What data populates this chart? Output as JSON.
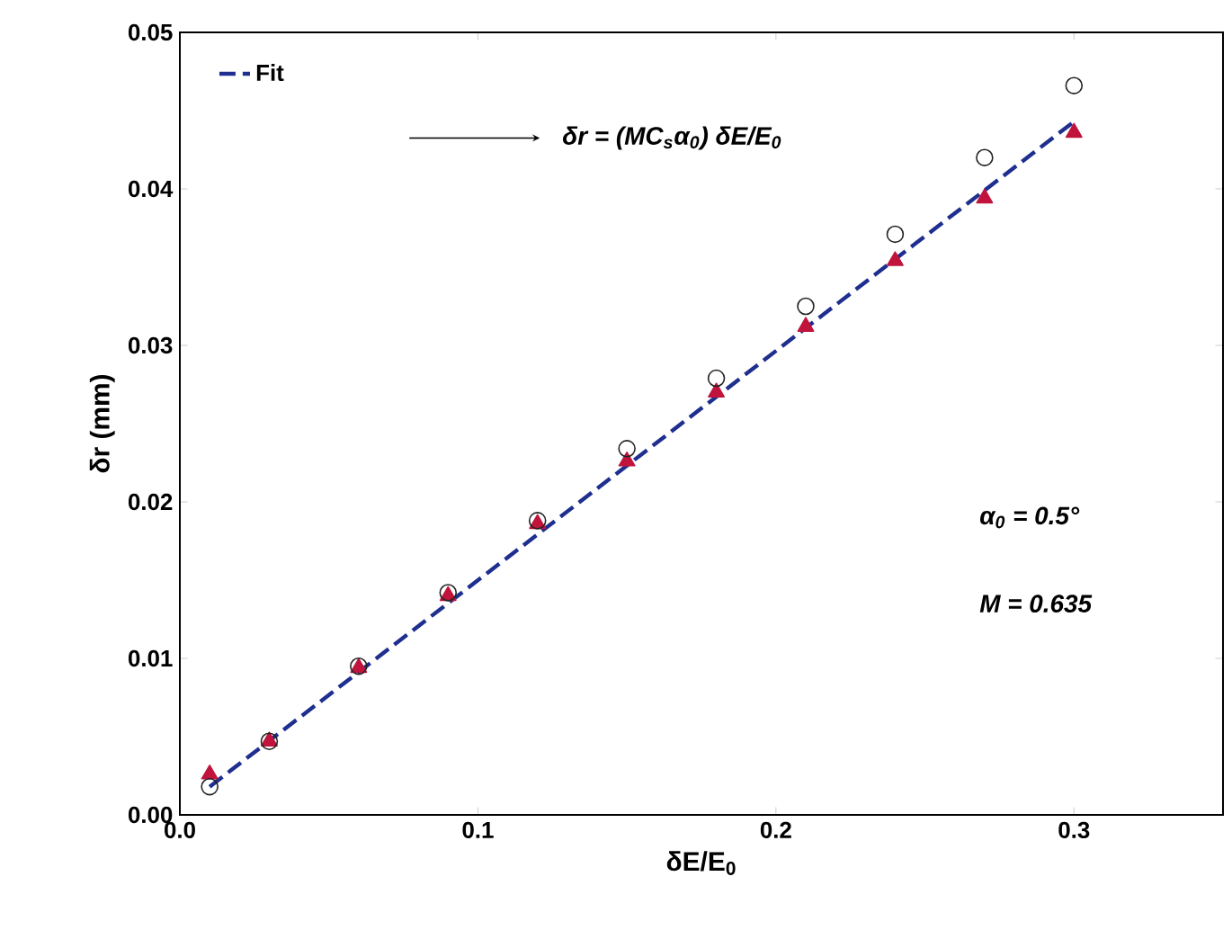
{
  "chart_data": {
    "type": "scatter",
    "xlabel": "δE/E$_{0}$",
    "ylabel": "δr (mm)",
    "xlim": [
      0,
      0.35
    ],
    "ylim": [
      0,
      0.05
    ],
    "xticks": [
      {
        "value": 0,
        "label": "0.0"
      },
      {
        "value": 0.1,
        "label": "0.1"
      },
      {
        "value": 0.2,
        "label": "0.2"
      },
      {
        "value": 0.3,
        "label": "0.3"
      }
    ],
    "yticks": [
      {
        "value": 0,
        "label": "0.00"
      },
      {
        "value": 0.01,
        "label": "0.01"
      },
      {
        "value": 0.02,
        "label": "0.02"
      },
      {
        "value": 0.03,
        "label": "0.03"
      },
      {
        "value": 0.04,
        "label": "0.04"
      },
      {
        "value": 0.05,
        "label": "0.05"
      }
    ],
    "legend": "top left",
    "grid": false,
    "series": [
      {
        "marker": "triangle",
        "color": "#c0143c",
        "x": [
          0.01,
          0.03,
          0.06,
          0.09,
          0.12,
          0.15,
          0.18,
          0.21,
          0.24,
          0.27,
          0.3
        ],
        "values": [
          0.0026,
          0.0047,
          0.0094,
          0.014,
          0.0186,
          0.0226,
          0.027,
          0.0312,
          0.0354,
          0.0394,
          0.0436
        ]
      },
      {
        "marker": "circle",
        "color": "#222222",
        "x": [
          0.01,
          0.03,
          0.06,
          0.09,
          0.12,
          0.15,
          0.18,
          0.21,
          0.24,
          0.27,
          0.3
        ],
        "values": [
          0.0018,
          0.0047,
          0.0095,
          0.0142,
          0.0188,
          0.0234,
          0.0279,
          0.0325,
          0.0371,
          0.042,
          0.0466
        ]
      },
      {
        "type": "line",
        "name": "Fit",
        "line_style": "dashed",
        "marker": "none",
        "color": "#1f2f8f",
        "x": [
          0.01,
          0.3
        ],
        "values": [
          0.0018,
          0.0443
        ]
      }
    ],
    "annotations": [
      "δr = (MC$_{s}$α$_{0}$) δE/E$_{0}$",
      "α$_{0}$ = 0.5°",
      "M = 0.635"
    ]
  }
}
